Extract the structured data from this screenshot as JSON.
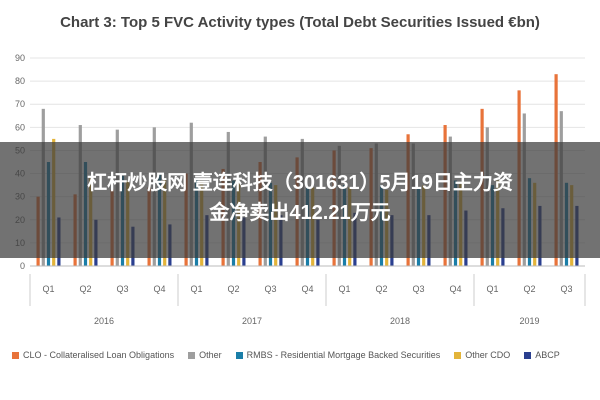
{
  "chart_data": {
    "type": "bar",
    "title": "Chart 3: Top 5 FVC Activity types (Total Debt Securities Issued €bn)",
    "xlabel": "",
    "ylabel": "",
    "ylim": [
      0,
      90
    ],
    "yticks": [
      0,
      10,
      20,
      30,
      40,
      50,
      60,
      70,
      80,
      90
    ],
    "grid": true,
    "legend_position": "bottom",
    "categories": [
      "Q1",
      "Q2",
      "Q3",
      "Q4",
      "Q1",
      "Q2",
      "Q3",
      "Q4",
      "Q1",
      "Q2",
      "Q3",
      "Q4",
      "Q1",
      "Q2",
      "Q3"
    ],
    "year_groups": [
      {
        "label": "2016",
        "start": 0,
        "count": 4
      },
      {
        "label": "2017",
        "start": 4,
        "count": 4
      },
      {
        "label": "2018",
        "start": 8,
        "count": 4
      },
      {
        "label": "2019",
        "start": 12,
        "count": 3
      }
    ],
    "series": [
      {
        "name": "CLO - Collateralised Loan Obligations",
        "color": "#e8733a",
        "values": [
          30,
          31,
          33,
          34,
          40,
          42,
          45,
          47,
          50,
          51,
          57,
          61,
          68,
          76,
          83
        ]
      },
      {
        "name": "Other",
        "color": "#9e9e9e",
        "values": [
          68,
          61,
          59,
          60,
          62,
          58,
          56,
          55,
          52,
          53,
          53,
          56,
          60,
          66,
          67
        ]
      },
      {
        "name": "RMBS - Residential Mortgage Backed Securities",
        "color": "#1a7ea8",
        "values": [
          45,
          45,
          39,
          40,
          38,
          37,
          36,
          34,
          35,
          35,
          34,
          37,
          35,
          38,
          36
        ]
      },
      {
        "name": "Other CDO",
        "color": "#e3b43a",
        "values": [
          55,
          38,
          37,
          38,
          37,
          36,
          35,
          34,
          34,
          33,
          35,
          36,
          37,
          36,
          35
        ]
      },
      {
        "name": "ABCP",
        "color": "#2a3f8f",
        "values": [
          21,
          20,
          17,
          18,
          22,
          21,
          22,
          20,
          23,
          22,
          22,
          24,
          25,
          26,
          26
        ]
      }
    ]
  },
  "overlay": {
    "line1": "杠杆炒股网 壹连科技（301631）5月19日主力资",
    "line2": "金净卖出412.21万元"
  }
}
